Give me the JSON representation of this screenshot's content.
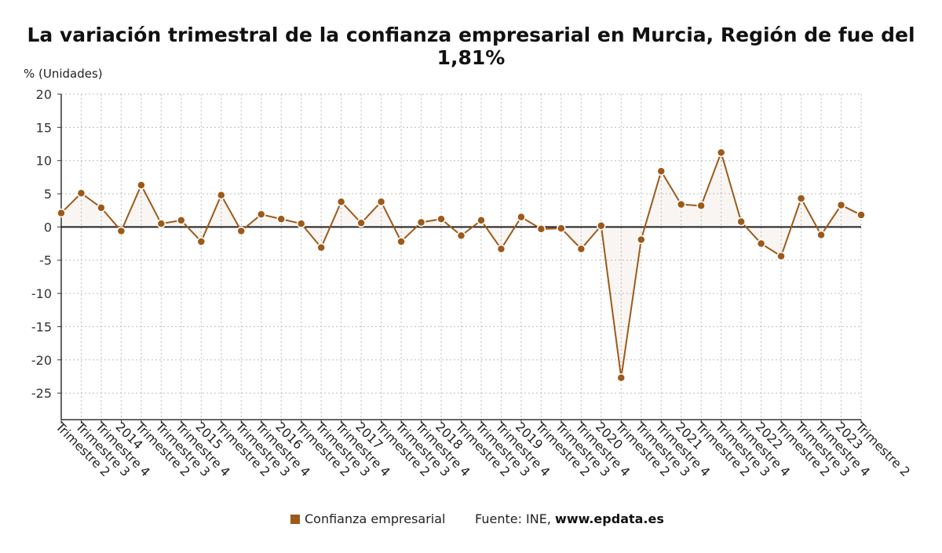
{
  "chart_data": {
    "type": "line",
    "title": "La variación trimestral de la confianza empresarial en Murcia, Región de fue del 1,81%",
    "ylabel": "% (Unidades)",
    "xlabel": "",
    "ylim": [
      -29,
      20
    ],
    "yticks": [
      20,
      15,
      10,
      5,
      0,
      -5,
      -10,
      -15,
      -20,
      -25
    ],
    "grid": true,
    "legend_position": "bottom",
    "categories": [
      "Trimestre 2",
      "Trimestre 3",
      "Trimestre 4",
      "2014",
      "Trimestre 2",
      "Trimestre 3",
      "Trimestre 4",
      "2015",
      "Trimestre 2",
      "Trimestre 3",
      "Trimestre 4",
      "2016",
      "Trimestre 2",
      "Trimestre 3",
      "Trimestre 4",
      "2017",
      "Trimestre 2",
      "Trimestre 3",
      "Trimestre 4",
      "2018",
      "Trimestre 2",
      "Trimestre 3",
      "Trimestre 4",
      "2019",
      "Trimestre 2",
      "Trimestre 3",
      "Trimestre 4",
      "2020",
      "Trimestre 2",
      "Trimestre 3",
      "Trimestre 4",
      "2021",
      "Trimestre 2",
      "Trimestre 3",
      "Trimestre 4",
      "2022",
      "Trimestre 2",
      "Trimestre 3",
      "Trimestre 4",
      "2023",
      "Trimestre 2"
    ],
    "series": [
      {
        "name": "Confianza empresarial",
        "color": "#9c5a1a",
        "values": [
          2.1,
          5.1,
          2.9,
          -0.6,
          6.3,
          0.5,
          1.0,
          -2.2,
          4.8,
          -0.6,
          1.9,
          1.2,
          0.5,
          -3.1,
          3.8,
          0.6,
          3.8,
          -2.2,
          0.7,
          1.2,
          -1.3,
          1.0,
          -3.3,
          1.5,
          -0.3,
          -0.2,
          -3.3,
          0.2,
          -22.7,
          -1.9,
          8.4,
          3.4,
          3.2,
          11.2,
          0.8,
          -2.5,
          -4.4,
          4.3,
          -1.2,
          3.3,
          1.81
        ]
      }
    ]
  },
  "legend": {
    "label": "Confianza empresarial",
    "color": "#9c5a1a"
  },
  "source": {
    "prefix": "Fuente: INE,",
    "domain": "www.epdata.es"
  }
}
